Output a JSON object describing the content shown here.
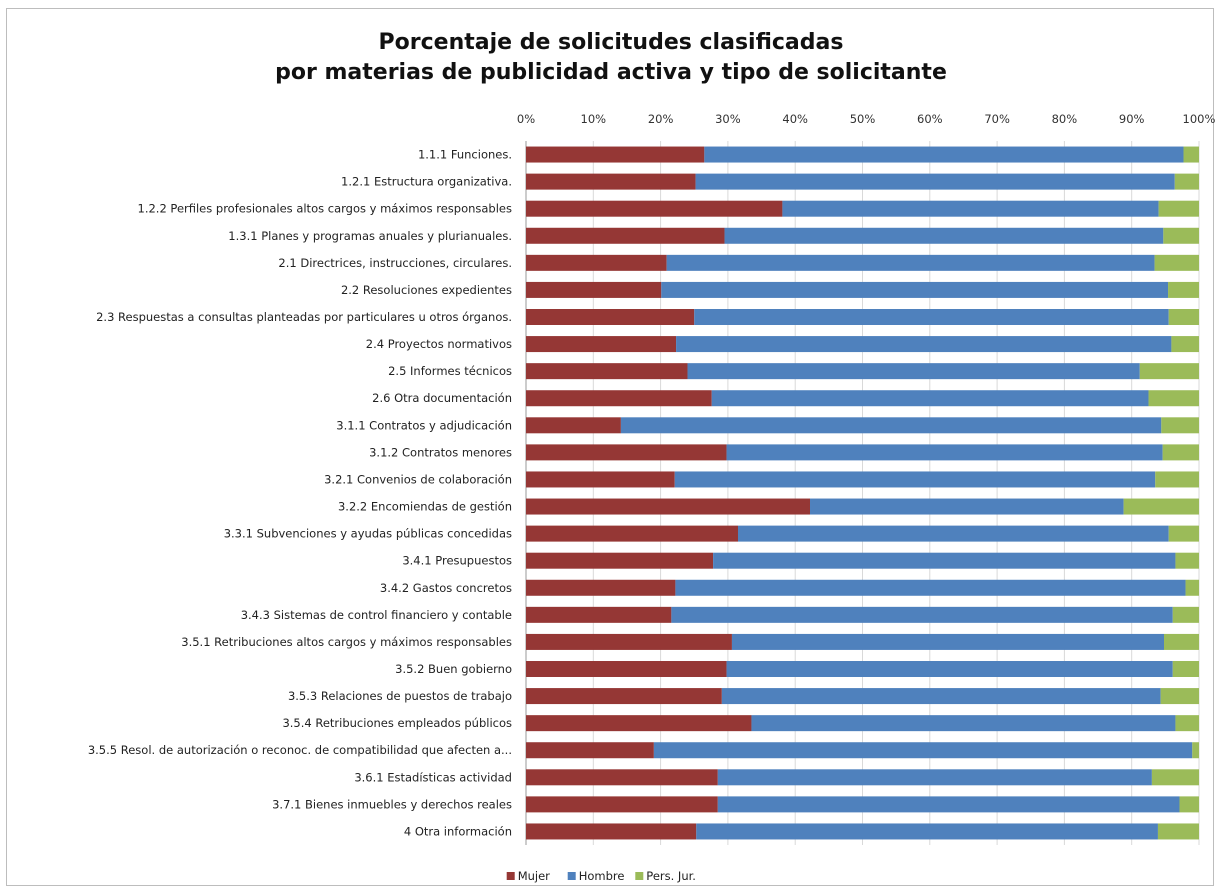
{
  "chart_data": {
    "type": "bar",
    "orientation": "horizontal",
    "stacked": "percent",
    "title": [
      "Porcentaje de solicitudes clasificadas",
      "por materias de publicidad activa y tipo de solicitante"
    ],
    "xlabel": "",
    "ylabel": "",
    "xlim": [
      0,
      100
    ],
    "x_ticks": [
      "0%",
      "10%",
      "20%",
      "30%",
      "40%",
      "50%",
      "60%",
      "70%",
      "80%",
      "90%",
      "100%"
    ],
    "x_axis_position": "top",
    "grid": true,
    "legend_position": "bottom",
    "categories": [
      "1.1.1 Funciones.",
      "1.2.1 Estructura organizativa.",
      "1.2.2 Perfiles profesionales altos cargos y máximos responsables",
      "1.3.1 Planes y programas anuales y plurianuales.",
      "2.1 Directrices, instrucciones, circulares.",
      "2.2 Resoluciones expedientes",
      "2.3 Respuestas a consultas planteadas por particulares u otros órganos.",
      "2.4 Proyectos normativos",
      "2.5 Informes técnicos",
      "2.6 Otra documentación",
      "3.1.1 Contratos y adjudicación",
      "3.1.2 Contratos menores",
      "3.2.1 Convenios de colaboración",
      "3.2.2 Encomiendas de gestión",
      "3.3.1 Subvenciones y ayudas públicas concedidas",
      "3.4.1 Presupuestos",
      "3.4.2 Gastos concretos",
      "3.4.3 Sistemas de control financiero y contable",
      "3.5.1 Retribuciones altos cargos y máximos responsables",
      "3.5.2 Buen gobierno",
      "3.5.3 Relaciones de puestos de trabajo",
      "3.5.4 Retribuciones empleados públicos",
      "3.5.5 Resol. de autorización o reconoc. de compatibilidad que afecten a...",
      "3.6.1 Estadísticas actividad",
      "3.7.1 Bienes inmuebles y derechos reales",
      "4 Otra información"
    ],
    "series": [
      {
        "name": "Mujer",
        "color": "#953735",
        "values": [
          26.5,
          25.2,
          38.1,
          29.5,
          20.9,
          20.1,
          25.0,
          22.3,
          24.0,
          27.6,
          14.1,
          29.8,
          22.1,
          42.2,
          31.5,
          27.8,
          22.2,
          21.6,
          30.6,
          29.8,
          29.1,
          33.5,
          19.0,
          28.5,
          28.5,
          25.3
        ]
      },
      {
        "name": "Hombre",
        "color": "#4F81BD",
        "values": [
          71.2,
          71.2,
          55.9,
          65.2,
          72.5,
          75.3,
          70.5,
          73.6,
          67.2,
          64.9,
          80.3,
          64.8,
          71.4,
          46.6,
          64.0,
          68.7,
          75.8,
          74.5,
          64.2,
          66.3,
          65.2,
          63.0,
          80.0,
          64.5,
          68.6,
          68.6
        ]
      },
      {
        "name": "Pers. Jur.",
        "color": "#9BBB59",
        "values": [
          2.3,
          3.6,
          6.0,
          5.3,
          6.6,
          4.6,
          4.5,
          4.1,
          8.8,
          7.5,
          5.6,
          5.4,
          6.5,
          11.2,
          4.5,
          3.5,
          2.0,
          3.9,
          5.2,
          3.9,
          5.7,
          3.5,
          1.0,
          7.0,
          2.9,
          6.1
        ]
      }
    ]
  }
}
